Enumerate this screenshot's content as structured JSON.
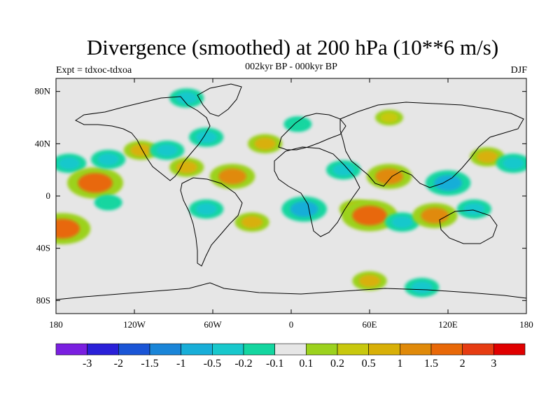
{
  "title": "Divergence (smoothed) at 200 hPa (10**6 m/s)",
  "subtitle_left": "Expt = tdxoc-tdxoa",
  "subtitle_center": "002kyr BP - 000kyr BP",
  "subtitle_right": "DJF",
  "axes": {
    "lat_ticks": [
      {
        "value": 80,
        "label": "80N"
      },
      {
        "value": 40,
        "label": "40N"
      },
      {
        "value": 0,
        "label": "0"
      },
      {
        "value": -40,
        "label": "40S"
      },
      {
        "value": -80,
        "label": "80S"
      }
    ],
    "lon_ticks": [
      {
        "value": -180,
        "label": "180"
      },
      {
        "value": -120,
        "label": "120W"
      },
      {
        "value": -60,
        "label": "60W"
      },
      {
        "value": 0,
        "label": "0"
      },
      {
        "value": 60,
        "label": "60E"
      },
      {
        "value": 120,
        "label": "120E"
      },
      {
        "value": 180,
        "label": "180"
      }
    ],
    "lon_range": [
      -180,
      180
    ],
    "lat_range": [
      -90,
      90
    ]
  },
  "colorbar": {
    "colors": [
      "#7a1fe0",
      "#2a20d8",
      "#1a55d6",
      "#1a85d8",
      "#18aed8",
      "#18c8cc",
      "#14d6a0",
      "#e6e6e6",
      "#9cd21e",
      "#c8c80e",
      "#d8b008",
      "#e08a0a",
      "#e86808",
      "#e63c12",
      "#e00000"
    ],
    "labels": [
      "-3",
      "-2",
      "-1.5",
      "-1",
      "-0.5",
      "-0.2",
      "-0.1",
      "0.1",
      "0.2",
      "0.5",
      "1",
      "1.5",
      "2",
      "3"
    ]
  },
  "chart_data": {
    "type": "heatmap",
    "title": "Divergence (smoothed) at 200 hPa (10**6 m/s)",
    "subtitle": "002kyr BP - 000kyr BP",
    "season": "DJF",
    "experiment": "tdxoc-tdxoa",
    "levels": [
      -3,
      -2,
      -1.5,
      -1,
      -0.5,
      -0.2,
      -0.1,
      0.1,
      0.2,
      0.5,
      1,
      1.5,
      2,
      3
    ],
    "x_range": [
      -180,
      180
    ],
    "y_range": [
      -90,
      90
    ],
    "anomalies": [
      {
        "lon": -170,
        "lat": 25,
        "value": -0.5
      },
      {
        "lon": -150,
        "lat": 10,
        "value": 1.5
      },
      {
        "lon": -140,
        "lat": 28,
        "value": -0.5
      },
      {
        "lon": -175,
        "lat": -25,
        "value": 1.5
      },
      {
        "lon": -140,
        "lat": -5,
        "value": -0.2
      },
      {
        "lon": -115,
        "lat": 35,
        "value": 0.5
      },
      {
        "lon": -95,
        "lat": 35,
        "value": -0.5
      },
      {
        "lon": -80,
        "lat": 22,
        "value": 0.5
      },
      {
        "lon": -45,
        "lat": 15,
        "value": 1.0
      },
      {
        "lon": -20,
        "lat": 40,
        "value": 0.5
      },
      {
        "lon": -65,
        "lat": 45,
        "value": -0.5
      },
      {
        "lon": -65,
        "lat": -10,
        "value": -0.5
      },
      {
        "lon": -30,
        "lat": -20,
        "value": 0.5
      },
      {
        "lon": 10,
        "lat": -10,
        "value": -1.0
      },
      {
        "lon": 40,
        "lat": 20,
        "value": -0.5
      },
      {
        "lon": 50,
        "lat": -10,
        "value": 0.5
      },
      {
        "lon": 60,
        "lat": -15,
        "value": 1.5
      },
      {
        "lon": 75,
        "lat": 15,
        "value": 1.0
      },
      {
        "lon": 85,
        "lat": -20,
        "value": -0.5
      },
      {
        "lon": 110,
        "lat": -15,
        "value": 1.0
      },
      {
        "lon": 120,
        "lat": 10,
        "value": -1.0
      },
      {
        "lon": 140,
        "lat": -10,
        "value": -0.5
      },
      {
        "lon": 150,
        "lat": 30,
        "value": 0.5
      },
      {
        "lon": 170,
        "lat": 25,
        "value": -0.5
      },
      {
        "lon": 60,
        "lat": -65,
        "value": 0.5
      },
      {
        "lon": 100,
        "lat": -70,
        "value": -0.5
      },
      {
        "lon": -80,
        "lat": 75,
        "value": -0.5
      },
      {
        "lon": 5,
        "lat": 55,
        "value": -0.2
      },
      {
        "lon": 75,
        "lat": 60,
        "value": 0.2
      }
    ]
  }
}
